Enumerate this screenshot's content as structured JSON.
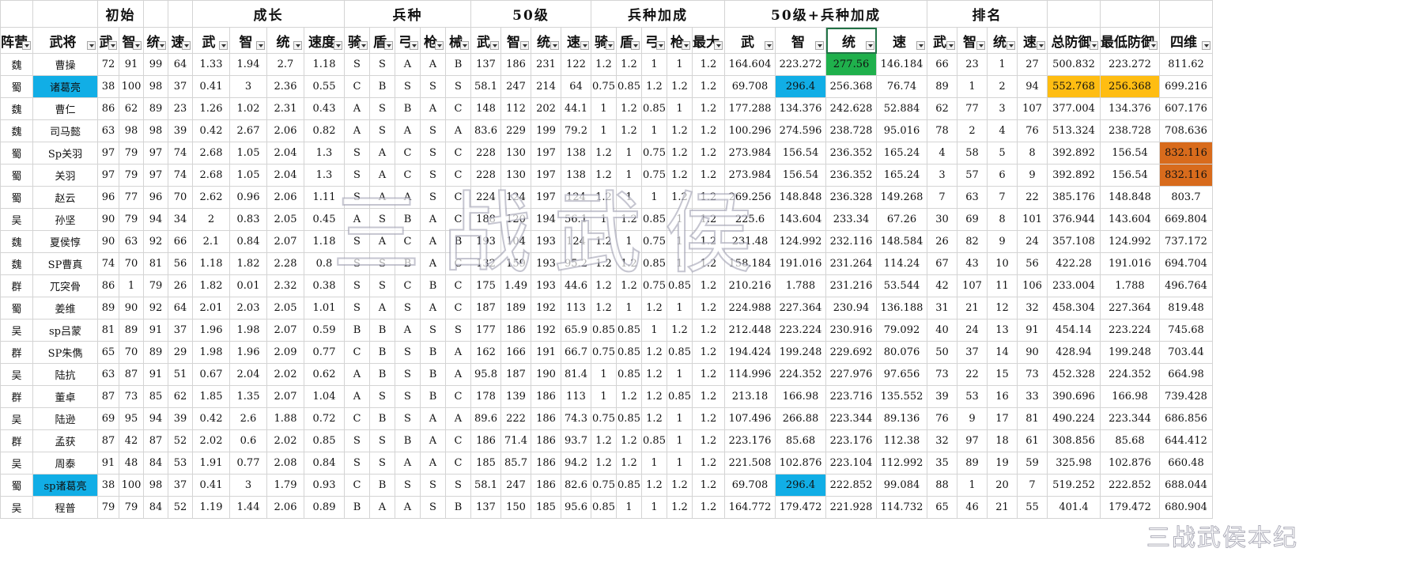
{
  "colors": {
    "green": "#1fb04c",
    "blue": "#11aee6",
    "orange": "#ffbd12",
    "brown": "#d86b1c",
    "grid": "#d4d4d4"
  },
  "groups": [
    "初始",
    "成长",
    "兵种",
    "50级",
    "兵种加成",
    "50级+兵种加成",
    "排名"
  ],
  "headers": [
    "阵营",
    "武将",
    "武",
    "智",
    "统",
    "速",
    "武",
    "智",
    "统",
    "速度",
    "骑",
    "盾",
    "弓",
    "枪",
    "械",
    "武",
    "智",
    "统",
    "速",
    "骑",
    "盾",
    "弓",
    "枪",
    "最大",
    "武",
    "智",
    "统",
    "速",
    "武",
    "智",
    "统",
    "速",
    "总防御",
    "最低防御",
    "四维"
  ],
  "rows": [
    [
      "魏",
      "曹操",
      "72",
      "91",
      "99",
      "64",
      "1.33",
      "1.94",
      "2.7",
      "1.18",
      "S",
      "S",
      "A",
      "A",
      "B",
      "137",
      "186",
      "231",
      "122",
      "1.2",
      "1.2",
      "1",
      "1",
      "1.2",
      "164.604",
      "223.272",
      "277.56",
      "146.184",
      "66",
      "23",
      "1",
      "27",
      "500.832",
      "223.272",
      "811.62"
    ],
    [
      "蜀",
      "诸葛亮",
      "38",
      "100",
      "98",
      "37",
      "0.41",
      "3",
      "2.36",
      "0.55",
      "C",
      "B",
      "S",
      "S",
      "S",
      "58.1",
      "247",
      "214",
      "64",
      "0.75",
      "0.85",
      "1.2",
      "1.2",
      "1.2",
      "69.708",
      "296.4",
      "256.368",
      "76.74",
      "89",
      "1",
      "2",
      "94",
      "552.768",
      "256.368",
      "699.216"
    ],
    [
      "魏",
      "曹仁",
      "86",
      "62",
      "89",
      "23",
      "1.26",
      "1.02",
      "2.31",
      "0.43",
      "A",
      "S",
      "B",
      "A",
      "C",
      "148",
      "112",
      "202",
      "44.1",
      "1",
      "1.2",
      "0.85",
      "1",
      "1.2",
      "177.288",
      "134.376",
      "242.628",
      "52.884",
      "62",
      "77",
      "3",
      "107",
      "377.004",
      "134.376",
      "607.176"
    ],
    [
      "魏",
      "司马懿",
      "63",
      "98",
      "98",
      "39",
      "0.42",
      "2.67",
      "2.06",
      "0.82",
      "A",
      "S",
      "A",
      "S",
      "A",
      "83.6",
      "229",
      "199",
      "79.2",
      "1",
      "1.2",
      "1",
      "1.2",
      "1.2",
      "100.296",
      "274.596",
      "238.728",
      "95.016",
      "78",
      "2",
      "4",
      "76",
      "513.324",
      "238.728",
      "708.636"
    ],
    [
      "蜀",
      "Sp关羽",
      "97",
      "79",
      "97",
      "74",
      "2.68",
      "1.05",
      "2.04",
      "1.3",
      "S",
      "A",
      "C",
      "S",
      "C",
      "228",
      "130",
      "197",
      "138",
      "1.2",
      "1",
      "0.75",
      "1.2",
      "1.2",
      "273.984",
      "156.54",
      "236.352",
      "165.24",
      "4",
      "58",
      "5",
      "8",
      "392.892",
      "156.54",
      "832.116"
    ],
    [
      "蜀",
      "关羽",
      "97",
      "79",
      "97",
      "74",
      "2.68",
      "1.05",
      "2.04",
      "1.3",
      "S",
      "A",
      "C",
      "S",
      "C",
      "228",
      "130",
      "197",
      "138",
      "1.2",
      "1",
      "0.75",
      "1.2",
      "1.2",
      "273.984",
      "156.54",
      "236.352",
      "165.24",
      "3",
      "57",
      "6",
      "9",
      "392.892",
      "156.54",
      "832.116"
    ],
    [
      "蜀",
      "赵云",
      "96",
      "77",
      "96",
      "70",
      "2.62",
      "0.96",
      "2.06",
      "1.11",
      "S",
      "A",
      "A",
      "S",
      "C",
      "224",
      "124",
      "197",
      "124",
      "1.2",
      "1",
      "1",
      "1.2",
      "1.2",
      "269.256",
      "148.848",
      "236.328",
      "149.268",
      "7",
      "63",
      "7",
      "22",
      "385.176",
      "148.848",
      "803.7"
    ],
    [
      "吴",
      "孙坚",
      "90",
      "79",
      "94",
      "34",
      "2",
      "0.83",
      "2.05",
      "0.45",
      "A",
      "S",
      "B",
      "A",
      "C",
      "188",
      "120",
      "194",
      "56.1",
      "1",
      "1.2",
      "0.85",
      "1",
      "1.2",
      "225.6",
      "143.604",
      "233.34",
      "67.26",
      "30",
      "69",
      "8",
      "101",
      "376.944",
      "143.604",
      "669.804"
    ],
    [
      "魏",
      "夏侯惇",
      "90",
      "63",
      "92",
      "66",
      "2.1",
      "0.84",
      "2.07",
      "1.18",
      "S",
      "A",
      "C",
      "A",
      "B",
      "193",
      "104",
      "193",
      "124",
      "1.2",
      "1",
      "0.75",
      "1",
      "1.2",
      "231.48",
      "124.992",
      "232.116",
      "148.584",
      "26",
      "82",
      "9",
      "24",
      "357.108",
      "124.992",
      "737.172"
    ],
    [
      "魏",
      "SP曹真",
      "74",
      "70",
      "81",
      "56",
      "1.18",
      "1.82",
      "2.28",
      "0.8",
      "S",
      "S",
      "B",
      "A",
      "C",
      "132",
      "159",
      "193",
      "95.2",
      "1.2",
      "1.2",
      "0.85",
      "1",
      "1.2",
      "158.184",
      "191.016",
      "231.264",
      "114.24",
      "67",
      "43",
      "10",
      "56",
      "422.28",
      "191.016",
      "694.704"
    ],
    [
      "群",
      "兀突骨",
      "86",
      "1",
      "79",
      "26",
      "1.82",
      "0.01",
      "2.32",
      "0.38",
      "S",
      "S",
      "C",
      "B",
      "C",
      "175",
      "1.49",
      "193",
      "44.6",
      "1.2",
      "1.2",
      "0.75",
      "0.85",
      "1.2",
      "210.216",
      "1.788",
      "231.216",
      "53.544",
      "42",
      "107",
      "11",
      "106",
      "233.004",
      "1.788",
      "496.764"
    ],
    [
      "蜀",
      "姜维",
      "89",
      "90",
      "92",
      "64",
      "2.01",
      "2.03",
      "2.05",
      "1.01",
      "S",
      "A",
      "S",
      "A",
      "C",
      "187",
      "189",
      "192",
      "113",
      "1.2",
      "1",
      "1.2",
      "1",
      "1.2",
      "224.988",
      "227.364",
      "230.94",
      "136.188",
      "31",
      "21",
      "12",
      "32",
      "458.304",
      "227.364",
      "819.48"
    ],
    [
      "吴",
      "sp吕蒙",
      "81",
      "89",
      "91",
      "37",
      "1.96",
      "1.98",
      "2.07",
      "0.59",
      "B",
      "B",
      "A",
      "S",
      "S",
      "177",
      "186",
      "192",
      "65.9",
      "0.85",
      "0.85",
      "1",
      "1.2",
      "1.2",
      "212.448",
      "223.224",
      "230.916",
      "79.092",
      "40",
      "24",
      "13",
      "91",
      "454.14",
      "223.224",
      "745.68"
    ],
    [
      "群",
      "SP朱儁",
      "65",
      "70",
      "89",
      "29",
      "1.98",
      "1.96",
      "2.09",
      "0.77",
      "C",
      "B",
      "S",
      "B",
      "A",
      "162",
      "166",
      "191",
      "66.7",
      "0.75",
      "0.85",
      "1.2",
      "0.85",
      "1.2",
      "194.424",
      "199.248",
      "229.692",
      "80.076",
      "50",
      "37",
      "14",
      "90",
      "428.94",
      "199.248",
      "703.44"
    ],
    [
      "吴",
      "陆抗",
      "63",
      "87",
      "91",
      "51",
      "0.67",
      "2.04",
      "2.02",
      "0.62",
      "A",
      "B",
      "S",
      "B",
      "A",
      "95.8",
      "187",
      "190",
      "81.4",
      "1",
      "0.85",
      "1.2",
      "1",
      "1.2",
      "114.996",
      "224.352",
      "227.976",
      "97.656",
      "73",
      "22",
      "15",
      "73",
      "452.328",
      "224.352",
      "664.98"
    ],
    [
      "群",
      "董卓",
      "87",
      "73",
      "85",
      "62",
      "1.85",
      "1.35",
      "2.07",
      "1.04",
      "A",
      "S",
      "S",
      "B",
      "C",
      "178",
      "139",
      "186",
      "113",
      "1",
      "1.2",
      "1.2",
      "0.85",
      "1.2",
      "213.18",
      "166.98",
      "223.716",
      "135.552",
      "39",
      "53",
      "16",
      "33",
      "390.696",
      "166.98",
      "739.428"
    ],
    [
      "吴",
      "陆逊",
      "69",
      "95",
      "94",
      "39",
      "0.42",
      "2.6",
      "1.88",
      "0.72",
      "C",
      "B",
      "S",
      "A",
      "A",
      "89.6",
      "222",
      "186",
      "74.3",
      "0.75",
      "0.85",
      "1.2",
      "1",
      "1.2",
      "107.496",
      "266.88",
      "223.344",
      "89.136",
      "76",
      "9",
      "17",
      "81",
      "490.224",
      "223.344",
      "686.856"
    ],
    [
      "群",
      "孟获",
      "87",
      "42",
      "87",
      "52",
      "2.02",
      "0.6",
      "2.02",
      "0.85",
      "S",
      "S",
      "B",
      "A",
      "C",
      "186",
      "71.4",
      "186",
      "93.7",
      "1.2",
      "1.2",
      "0.85",
      "1",
      "1.2",
      "223.176",
      "85.68",
      "223.176",
      "112.38",
      "32",
      "97",
      "18",
      "61",
      "308.856",
      "85.68",
      "644.412"
    ],
    [
      "吴",
      "周泰",
      "91",
      "48",
      "84",
      "53",
      "1.91",
      "0.77",
      "2.08",
      "0.84",
      "S",
      "S",
      "A",
      "A",
      "C",
      "185",
      "85.7",
      "186",
      "94.2",
      "1.2",
      "1.2",
      "1",
      "1",
      "1.2",
      "221.508",
      "102.876",
      "223.104",
      "112.992",
      "35",
      "89",
      "19",
      "59",
      "325.98",
      "102.876",
      "660.48"
    ],
    [
      "蜀",
      "sp诸葛亮",
      "38",
      "100",
      "98",
      "37",
      "0.41",
      "3",
      "1.79",
      "0.93",
      "C",
      "B",
      "S",
      "S",
      "S",
      "58.1",
      "247",
      "186",
      "82.6",
      "0.75",
      "0.85",
      "1.2",
      "1.2",
      "1.2",
      "69.708",
      "296.4",
      "222.852",
      "99.084",
      "88",
      "1",
      "20",
      "7",
      "519.252",
      "222.852",
      "688.044"
    ],
    [
      "吴",
      "程普",
      "79",
      "79",
      "84",
      "52",
      "1.19",
      "1.44",
      "2.06",
      "0.89",
      "B",
      "A",
      "A",
      "S",
      "B",
      "137",
      "150",
      "185",
      "95.6",
      "0.85",
      "1",
      "1",
      "1.2",
      "1.2",
      "164.772",
      "179.472",
      "221.928",
      "114.732",
      "65",
      "46",
      "21",
      "55",
      "401.4",
      "179.472",
      "680.904"
    ]
  ],
  "highlights": [
    {
      "row": 0,
      "col": 26,
      "color": "green"
    },
    {
      "row": 1,
      "col": 1,
      "color": "blue"
    },
    {
      "row": 1,
      "col": 25,
      "color": "blue"
    },
    {
      "row": 1,
      "col": 32,
      "color": "orange"
    },
    {
      "row": 1,
      "col": 33,
      "color": "orange"
    },
    {
      "row": 4,
      "col": 34,
      "color": "brown"
    },
    {
      "row": 5,
      "col": 34,
      "color": "brown"
    },
    {
      "row": 19,
      "col": 1,
      "color": "blue"
    },
    {
      "row": 19,
      "col": 25,
      "color": "blue"
    }
  ],
  "watermark": "三战武侯",
  "watermark_corner": "三战武侯本纪"
}
